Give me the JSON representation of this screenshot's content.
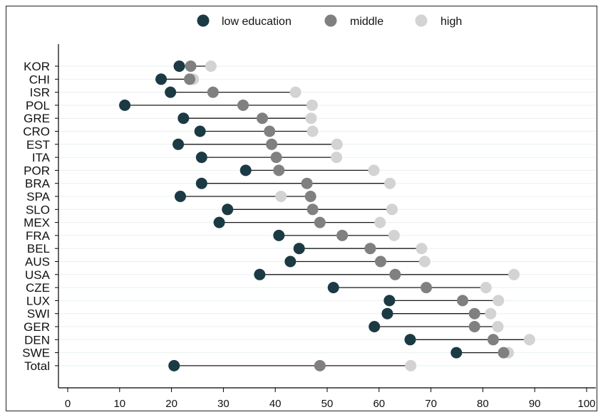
{
  "chart_data": {
    "type": "dumbbell",
    "title": "",
    "xlabel": "",
    "ylabel": "",
    "xlim": [
      0,
      100
    ],
    "xticks": [
      0,
      10,
      20,
      30,
      40,
      50,
      60,
      70,
      80,
      90,
      100
    ],
    "grid": "horizontal",
    "legend_position": "top",
    "categories": [
      "KOR",
      "CHI",
      "ISR",
      "POL",
      "GRE",
      "CRO",
      "EST",
      "ITA",
      "POR",
      "BRA",
      "SPA",
      "SLO",
      "MEX",
      "FRA",
      "BEL",
      "AUS",
      "USA",
      "CZE",
      "LUX",
      "SWI",
      "GER",
      "DEN",
      "SWE",
      "Total"
    ],
    "series": [
      {
        "name": "low education",
        "color": "#1b3a44",
        "values": [
          21.5,
          18,
          19.8,
          11,
          22.3,
          25.5,
          21.3,
          25.8,
          34.3,
          25.8,
          21.7,
          30.8,
          29.2,
          40.7,
          44.6,
          42.9,
          37,
          51.2,
          62,
          61.6,
          59.1,
          66,
          74.9,
          20.5
        ]
      },
      {
        "name": "middle",
        "color": "#808080",
        "values": [
          23.7,
          23.5,
          28,
          33.8,
          37.5,
          38.9,
          39.3,
          40.2,
          40.7,
          46.1,
          46.8,
          47.2,
          48.6,
          52.9,
          58.3,
          60.3,
          63.1,
          69.1,
          76.1,
          78.4,
          78.4,
          82,
          84,
          48.6
        ]
      },
      {
        "name": "high",
        "color": "#d3d3d3",
        "values": [
          27.6,
          24.2,
          43.9,
          47.1,
          46.9,
          47.2,
          51.9,
          51.8,
          59,
          62.1,
          41.1,
          62.5,
          60.2,
          62.9,
          68.2,
          68.8,
          86,
          80.6,
          83,
          81.5,
          82.9,
          89,
          84.9,
          66.1
        ]
      }
    ]
  }
}
